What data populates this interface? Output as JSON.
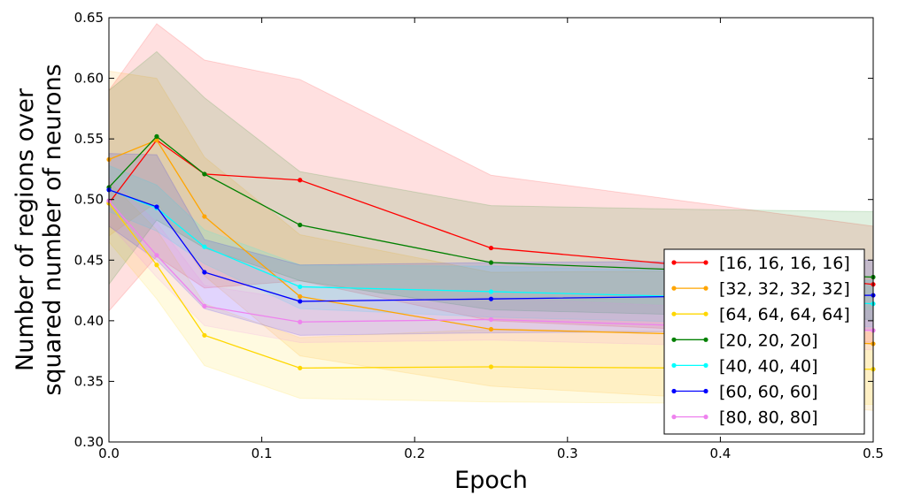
{
  "chart_data": {
    "type": "line",
    "xlabel": "Epoch",
    "ylabel_lines": [
      "Number of regions over",
      "squared number of neurons"
    ],
    "xlim": [
      0.0,
      0.5
    ],
    "ylim": [
      0.3,
      0.65
    ],
    "xticks": [
      "0.0",
      "0.1",
      "0.2",
      "0.3",
      "0.4",
      "0.5"
    ],
    "yticks": [
      "0.30",
      "0.35",
      "0.40",
      "0.45",
      "0.50",
      "0.55",
      "0.60",
      "0.65"
    ],
    "grid": false,
    "legend_position": "lower-right",
    "x": [
      0.0,
      0.03125,
      0.0625,
      0.125,
      0.25,
      0.375,
      0.5
    ],
    "series": [
      {
        "name": "[16, 16, 16, 16]",
        "color": "#ff0000",
        "values": [
          0.497,
          0.549,
          0.521,
          0.516,
          0.46,
          0.446,
          0.43
        ],
        "lower": [
          0.408,
          0.453,
          0.427,
          0.433,
          0.4,
          0.393,
          0.382
        ],
        "upper": [
          0.59,
          0.645,
          0.615,
          0.599,
          0.52,
          0.499,
          0.478
        ]
      },
      {
        "name": "[32, 32, 32, 32]",
        "color": "#ffa500",
        "values": [
          0.533,
          0.549,
          0.486,
          0.42,
          0.393,
          0.389,
          0.381
        ],
        "lower": [
          0.47,
          0.498,
          0.437,
          0.371,
          0.346,
          0.337,
          0.326
        ],
        "upper": [
          0.606,
          0.6,
          0.535,
          0.471,
          0.44,
          0.441,
          0.436
        ]
      },
      {
        "name": "[64, 64, 64, 64]",
        "color": "#ffd700",
        "values": [
          0.497,
          0.446,
          0.388,
          0.361,
          0.362,
          0.361,
          0.36
        ],
        "lower": [
          0.465,
          0.418,
          0.363,
          0.336,
          0.333,
          0.332,
          0.331
        ],
        "upper": [
          0.515,
          0.475,
          0.414,
          0.386,
          0.393,
          0.391,
          0.39
        ]
      },
      {
        "name": "[20, 20, 20]",
        "color": "#008000",
        "values": [
          0.51,
          0.552,
          0.521,
          0.479,
          0.448,
          0.442,
          0.436
        ],
        "lower": [
          0.43,
          0.483,
          0.46,
          0.433,
          0.409,
          0.405,
          0.401
        ],
        "upper": [
          0.59,
          0.622,
          0.584,
          0.523,
          0.495,
          0.492,
          0.49
        ]
      },
      {
        "name": "[40, 40, 40]",
        "color": "#00ffff",
        "values": [
          0.508,
          0.493,
          0.461,
          0.428,
          0.424,
          0.42,
          0.414
        ],
        "lower": [
          0.49,
          0.474,
          0.447,
          0.41,
          0.403,
          0.399,
          0.395
        ],
        "upper": [
          0.528,
          0.512,
          0.475,
          0.446,
          0.445,
          0.441,
          0.433
        ]
      },
      {
        "name": "[60, 60, 60]",
        "color": "#0000ff",
        "values": [
          0.508,
          0.494,
          0.44,
          0.416,
          0.418,
          0.42,
          0.421
        ],
        "lower": [
          0.478,
          0.45,
          0.41,
          0.388,
          0.39,
          0.391,
          0.392
        ],
        "upper": [
          0.538,
          0.537,
          0.467,
          0.446,
          0.448,
          0.449,
          0.45
        ]
      },
      {
        "name": "[80, 80, 80]",
        "color": "#ee82ee",
        "values": [
          0.499,
          0.454,
          0.412,
          0.399,
          0.401,
          0.396,
          0.392
        ],
        "lower": [
          0.48,
          0.436,
          0.396,
          0.382,
          0.384,
          0.38,
          0.376
        ],
        "upper": [
          0.518,
          0.481,
          0.429,
          0.417,
          0.419,
          0.412,
          0.408
        ]
      }
    ]
  }
}
